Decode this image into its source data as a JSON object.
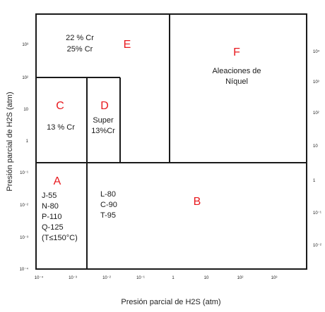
{
  "axes": {
    "x_title": "Presión parcial de H2S (atm)",
    "y_title": "Presión parcial de H2S (atm)",
    "x_ticks": [
      "10⁻⁴",
      "10⁻³",
      "10⁻²",
      "10⁻¹",
      "1",
      "10",
      "10²",
      "10³"
    ],
    "y_left_ticks": [
      "10³",
      "10²",
      "10",
      "1",
      "10⁻¹",
      "10⁻²",
      "10⁻³",
      "10⁻⁴"
    ],
    "y_right_ticks": [
      "10⁴",
      "10³",
      "10²",
      "10",
      "1",
      "10⁻¹",
      "10⁻²"
    ]
  },
  "regions": {
    "A": {
      "letter": "A",
      "lines": [
        "J-55",
        "N-80",
        "P-110",
        "Q-125",
        "(T≤150°C)"
      ]
    },
    "B": {
      "letter": "B",
      "lines": [
        "L-80",
        "C-90",
        "T-95"
      ]
    },
    "C": {
      "letter": "C",
      "lines": [
        "13 % Cr"
      ]
    },
    "D": {
      "letter": "D",
      "lines": [
        "Super",
        "13%Cr"
      ]
    },
    "E": {
      "letter": "E",
      "lines": [
        "22 % Cr",
        "25% Cr"
      ]
    },
    "F": {
      "letter": "F",
      "lines": [
        "Aleaciones de",
        "Níquel"
      ]
    }
  },
  "colors": {
    "letter": "#e8191e",
    "border": "#1a1a1a",
    "text": "#1a1a1a"
  }
}
